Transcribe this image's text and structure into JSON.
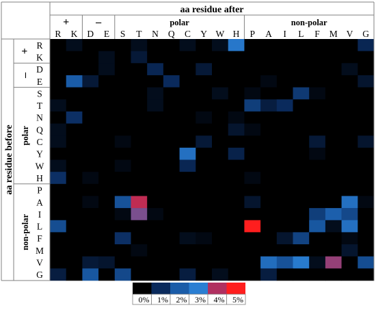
{
  "chart_data": {
    "type": "heatmap",
    "title": "",
    "xlabel": "aa residue after",
    "ylabel": "aa residue before",
    "x_groups": [
      {
        "label": "+",
        "members": [
          "R",
          "K"
        ]
      },
      {
        "label": "–",
        "members": [
          "D",
          "E"
        ]
      },
      {
        "label": "polar",
        "members": [
          "S",
          "T",
          "N",
          "Q",
          "C",
          "Y",
          "W",
          "H"
        ]
      },
      {
        "label": "non-polar",
        "members": [
          "P",
          "A",
          "I",
          "L",
          "F",
          "M",
          "V",
          "G"
        ]
      }
    ],
    "y_groups": [
      {
        "label": "+",
        "members": [
          "R",
          "K"
        ]
      },
      {
        "label": "–",
        "members": [
          "D",
          "E"
        ]
      },
      {
        "label": "polar",
        "members": [
          "S",
          "T",
          "N",
          "Q",
          "C",
          "Y",
          "W",
          "H"
        ]
      },
      {
        "label": "non-polar",
        "members": [
          "P",
          "A",
          "I",
          "L",
          "F",
          "M",
          "V",
          "G"
        ]
      }
    ],
    "x": [
      "R",
      "K",
      "D",
      "E",
      "S",
      "T",
      "N",
      "Q",
      "C",
      "Y",
      "W",
      "H",
      "P",
      "A",
      "I",
      "L",
      "F",
      "M",
      "V",
      "G"
    ],
    "y": [
      "R",
      "K",
      "D",
      "E",
      "S",
      "T",
      "N",
      "Q",
      "C",
      "Y",
      "W",
      "H",
      "P",
      "A",
      "I",
      "L",
      "F",
      "M",
      "V",
      "G"
    ],
    "value_unit": "%",
    "color_scale": {
      "stops": [
        0,
        1,
        2,
        3,
        4,
        5
      ],
      "colors": [
        "#000000",
        "#0a2a5c",
        "#1a5ca8",
        "#2a7ed2",
        "#b03060",
        "#ff1e1e"
      ],
      "labels": [
        "0%",
        "1%",
        "2%",
        "3%",
        "4%",
        "5%"
      ]
    },
    "values": [
      [
        0,
        0.3,
        0,
        0,
        0,
        0.3,
        0,
        0,
        0.3,
        0,
        0.3,
        2.8,
        0,
        0,
        0,
        0,
        0,
        0,
        0,
        0.9
      ],
      [
        0,
        0,
        0,
        0.3,
        0,
        0.6,
        0,
        0,
        0,
        0,
        0,
        0,
        0,
        0,
        0,
        0,
        0,
        0,
        0,
        0
      ],
      [
        0,
        0,
        0,
        0.3,
        0,
        0,
        0.9,
        0,
        0,
        0.6,
        0,
        0,
        0,
        0,
        0,
        0,
        0,
        0,
        0.3,
        0
      ],
      [
        0,
        2.0,
        0.6,
        0,
        0,
        0,
        0,
        1.0,
        0,
        0,
        0,
        0,
        0,
        0.2,
        0,
        0,
        0,
        0,
        0,
        0.5
      ],
      [
        0,
        0,
        0,
        0,
        0,
        0,
        0.3,
        0,
        0,
        0,
        0.3,
        0,
        0.2,
        0,
        0,
        1.3,
        0.2,
        0,
        0,
        0
      ],
      [
        0.3,
        0,
        0,
        0,
        0,
        0,
        0.3,
        0,
        0,
        0,
        0,
        0,
        1.4,
        0.7,
        1.0,
        0,
        0,
        0,
        0,
        0
      ],
      [
        0,
        1.1,
        0,
        0,
        0,
        0,
        0,
        0,
        0,
        0.2,
        0,
        0.2,
        0,
        0,
        0,
        0,
        0,
        0,
        0,
        0
      ],
      [
        0.3,
        0,
        0,
        0,
        0,
        0,
        0,
        0,
        0,
        0,
        0,
        0.5,
        0.2,
        0,
        0,
        0,
        0,
        0,
        0,
        0
      ],
      [
        0.3,
        0,
        0,
        0,
        0.2,
        0,
        0,
        0,
        0,
        0.6,
        0,
        0,
        0,
        0,
        0,
        0,
        0.6,
        0,
        0,
        0.5
      ],
      [
        0,
        0,
        0,
        0,
        0,
        0,
        0,
        0,
        2.6,
        0,
        0,
        0.8,
        0,
        0,
        0,
        0,
        0.2,
        0,
        0,
        0
      ],
      [
        0.3,
        0,
        0,
        0,
        0.2,
        0,
        0,
        0,
        0.9,
        0,
        0,
        0,
        0,
        0,
        0,
        0,
        0,
        0,
        0,
        0
      ],
      [
        1.1,
        0,
        0.2,
        0,
        0,
        0,
        0,
        0,
        0,
        0,
        0,
        0,
        0.2,
        0,
        0,
        0,
        0,
        0,
        0,
        0
      ],
      [
        0,
        0,
        0,
        0,
        0,
        0,
        0,
        0,
        0,
        0,
        0,
        0,
        0,
        0,
        0,
        0,
        0,
        0,
        0,
        0
      ],
      [
        0,
        0,
        0.2,
        0,
        1.8,
        4.2,
        0,
        0,
        0,
        0,
        0,
        0,
        0.5,
        0,
        0,
        0,
        0,
        0,
        2.6,
        0.2
      ],
      [
        0,
        0,
        0,
        0,
        0.2,
        3.6,
        0.2,
        0,
        0,
        0,
        0,
        0,
        0,
        0,
        0,
        0,
        1.4,
        2.1,
        1.6,
        0
      ],
      [
        1.7,
        0,
        0,
        0,
        0,
        0,
        0,
        0,
        0,
        0,
        0,
        0,
        5.0,
        0,
        0,
        0,
        1.9,
        0.3,
        2.6,
        0
      ],
      [
        0,
        0,
        0,
        0,
        1.1,
        0,
        0,
        0,
        0.3,
        0.2,
        0,
        0,
        0,
        0,
        0.5,
        1.5,
        0,
        0,
        0.2,
        0
      ],
      [
        0,
        0,
        0,
        0,
        0,
        0.2,
        0,
        0,
        0,
        0,
        0,
        0,
        0,
        0,
        0,
        0,
        0,
        0,
        0.5,
        0
      ],
      [
        0,
        0,
        0.6,
        0.5,
        0,
        0,
        0,
        0,
        0,
        0,
        0,
        0,
        0,
        2.5,
        1.8,
        2.9,
        0.3,
        3.8,
        0,
        1.7
      ],
      [
        0.7,
        0,
        1.9,
        0,
        1.6,
        0,
        0,
        0,
        0.7,
        0,
        0.3,
        0,
        0,
        0.7,
        0,
        0,
        0,
        0,
        0,
        0
      ]
    ]
  }
}
